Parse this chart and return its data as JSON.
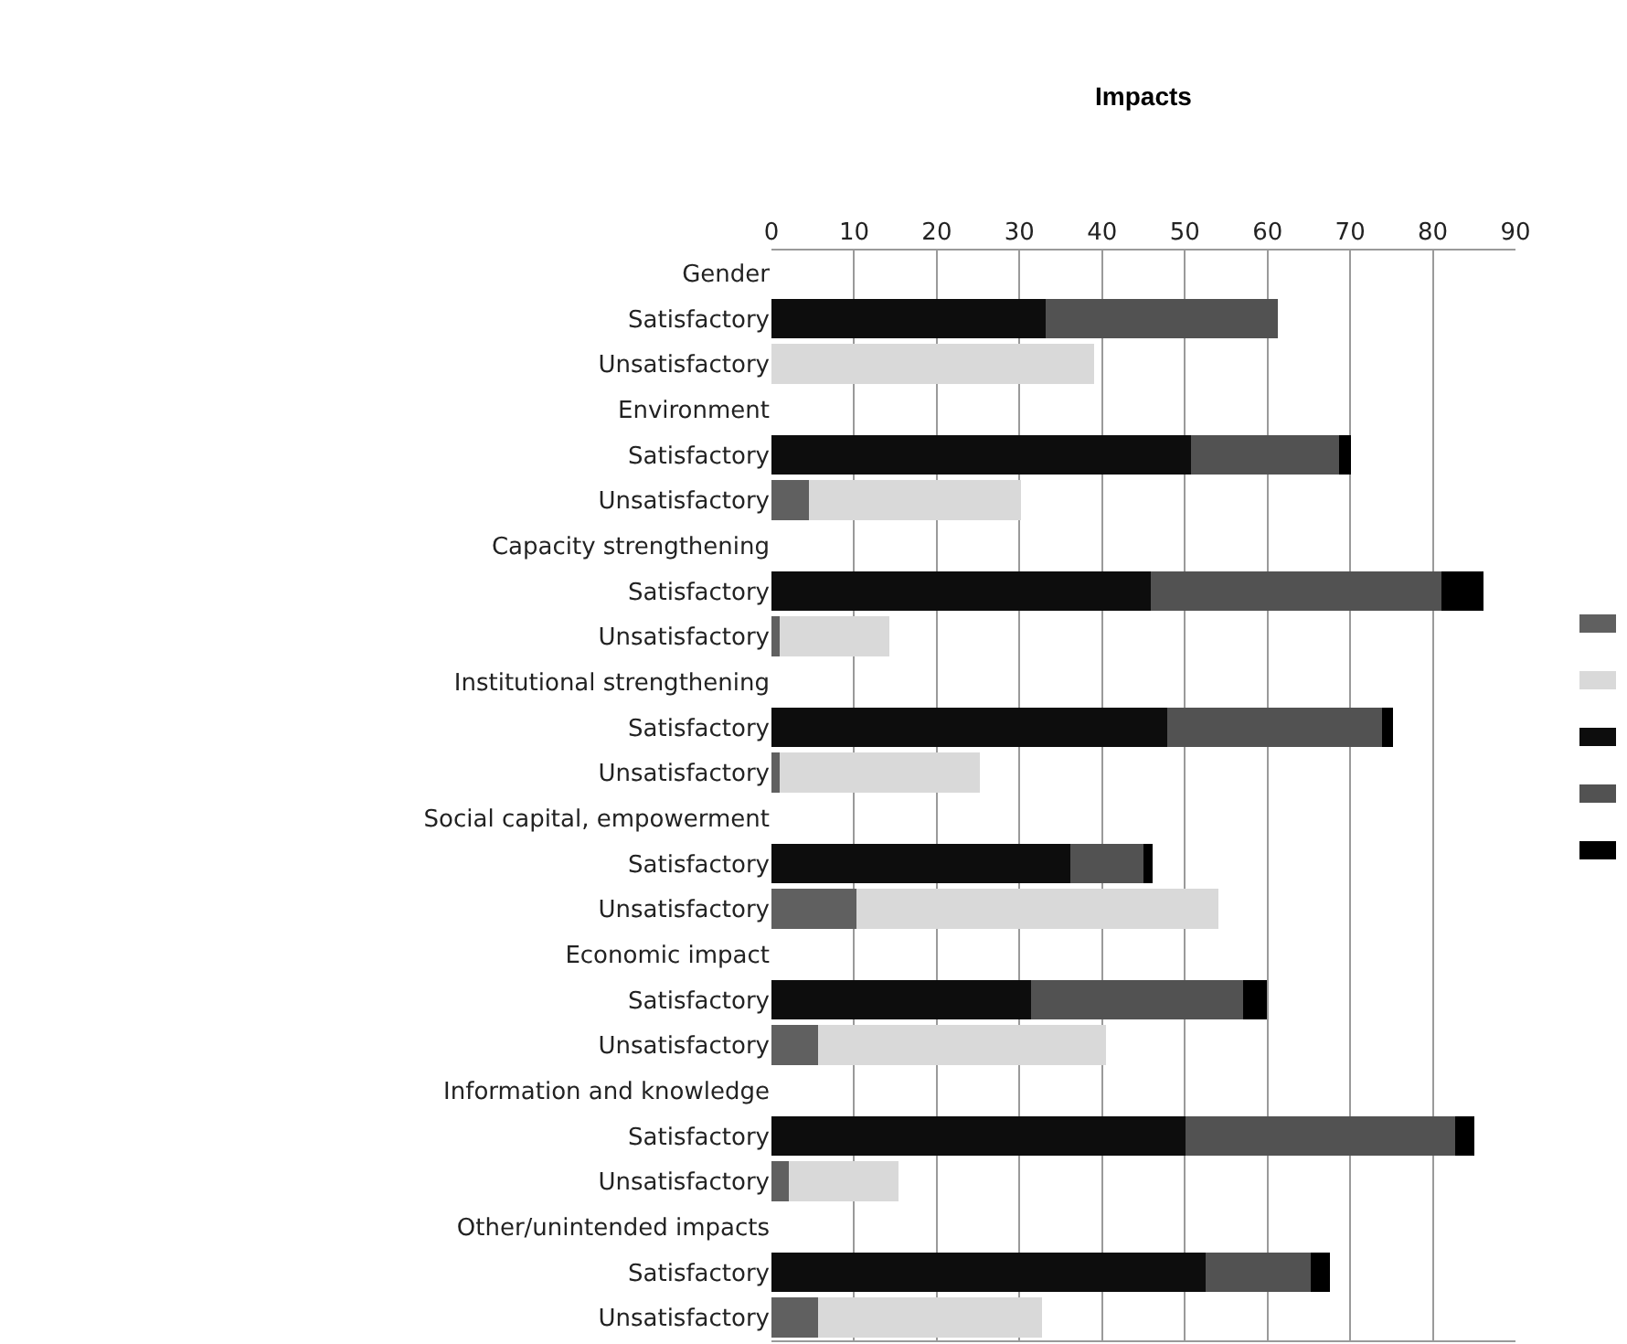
{
  "chart_data": {
    "type": "bar",
    "orientation": "horizontal",
    "stacked": true,
    "title": "Impacts",
    "categories": [
      "Gender",
      "Satisfactory",
      "Unsatisfactory",
      "Environment",
      "Satisfactory",
      "Unsatisfactory",
      "Capacity strengthening",
      "Satisfactory",
      "Unsatisfactory",
      "Institutional strengthening",
      "Satisfactory",
      "Unsatisfactory",
      "Social capital, empowerment",
      "Satisfactory",
      "Unsatisfactory",
      "Economic impact",
      "Satisfactory",
      "Unsatisfactory",
      "Information and knowledge",
      "Satisfactory",
      "Unsatisfactory",
      "Other/unintended impacts",
      "Satisfactory",
      "Unsatisfactory"
    ],
    "series": [
      {
        "color": "#606060",
        "values": [
          null,
          null,
          null,
          null,
          null,
          4.5,
          null,
          null,
          1.0,
          null,
          null,
          1.0,
          null,
          null,
          10.3,
          null,
          null,
          5.6,
          null,
          null,
          2.1,
          null,
          null,
          5.6
        ]
      },
      {
        "color": "#d9d9d9",
        "values": [
          null,
          null,
          39.0,
          null,
          null,
          25.7,
          null,
          null,
          13.3,
          null,
          null,
          24.2,
          null,
          null,
          43.8,
          null,
          null,
          34.9,
          null,
          null,
          13.3,
          null,
          null,
          27.1
        ]
      },
      {
        "color": "#0d0d0d",
        "values": [
          null,
          33.2,
          null,
          null,
          50.7,
          null,
          null,
          45.9,
          null,
          null,
          47.9,
          null,
          null,
          36.1,
          null,
          null,
          31.4,
          null,
          null,
          50.1,
          null,
          null,
          52.5,
          null
        ]
      },
      {
        "color": "#525252",
        "values": [
          null,
          28.0,
          null,
          null,
          18.0,
          null,
          null,
          35.1,
          null,
          null,
          26.0,
          null,
          null,
          8.9,
          null,
          null,
          25.6,
          null,
          null,
          32.6,
          null,
          null,
          12.7,
          null
        ]
      },
      {
        "color": "#000000",
        "values": [
          null,
          null,
          null,
          null,
          1.4,
          null,
          null,
          5.1,
          null,
          null,
          1.3,
          null,
          null,
          1.1,
          null,
          null,
          2.9,
          null,
          null,
          2.3,
          null,
          null,
          2.4,
          null
        ]
      }
    ],
    "xlim": [
      0,
      90
    ],
    "xticks": [
      0,
      10,
      20,
      30,
      40,
      50,
      60,
      70,
      80,
      90
    ],
    "grid": "x"
  }
}
